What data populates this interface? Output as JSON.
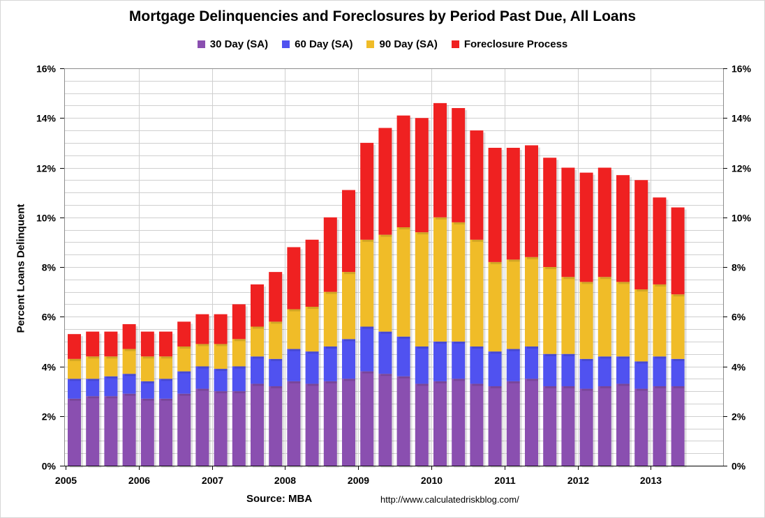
{
  "chart_data": {
    "type": "bar",
    "stacked": true,
    "title": "Mortgage Delinquencies and Foreclosures by Period Past Due, All Loans",
    "ylabel": "Percent Loans Delinquent",
    "xlabel": "",
    "ylim": [
      0,
      16
    ],
    "y_ticks": [
      "0%",
      "2%",
      "4%",
      "6%",
      "8%",
      "10%",
      "12%",
      "14%",
      "16%"
    ],
    "x_ticks": [
      "2005",
      "2006",
      "2007",
      "2008",
      "2009",
      "2010",
      "2011",
      "2012",
      "2013"
    ],
    "grid": true,
    "legend_position": "top",
    "categories": [
      "2005 Q1",
      "2005 Q2",
      "2005 Q3",
      "2005 Q4",
      "2006 Q1",
      "2006 Q2",
      "2006 Q3",
      "2006 Q4",
      "2007 Q1",
      "2007 Q2",
      "2007 Q3",
      "2007 Q4",
      "2008 Q1",
      "2008 Q2",
      "2008 Q3",
      "2008 Q4",
      "2009 Q1",
      "2009 Q2",
      "2009 Q3",
      "2009 Q4",
      "2010 Q1",
      "2010 Q2",
      "2010 Q3",
      "2010 Q4",
      "2011 Q1",
      "2011 Q2",
      "2011 Q3",
      "2011 Q4",
      "2012 Q1",
      "2012 Q2",
      "2012 Q3",
      "2012 Q4",
      "2013 Q1",
      "2013 Q2"
    ],
    "series": [
      {
        "name": "30 Day (SA)",
        "color": "#8a4fb0",
        "values": [
          2.7,
          2.8,
          2.8,
          2.9,
          2.7,
          2.7,
          2.9,
          3.1,
          3.0,
          3.0,
          3.3,
          3.2,
          3.4,
          3.3,
          3.4,
          3.5,
          3.8,
          3.7,
          3.6,
          3.3,
          3.4,
          3.5,
          3.3,
          3.2,
          3.4,
          3.5,
          3.2,
          3.2,
          3.1,
          3.2,
          3.3,
          3.1,
          3.2,
          3.2
        ]
      },
      {
        "name": "60 Day (SA)",
        "color": "#5052f0",
        "values": [
          0.8,
          0.7,
          0.8,
          0.8,
          0.7,
          0.8,
          0.9,
          0.9,
          0.9,
          1.0,
          1.1,
          1.1,
          1.3,
          1.3,
          1.4,
          1.6,
          1.8,
          1.7,
          1.6,
          1.5,
          1.6,
          1.5,
          1.5,
          1.4,
          1.3,
          1.3,
          1.3,
          1.3,
          1.2,
          1.2,
          1.1,
          1.1,
          1.2,
          1.1
        ]
      },
      {
        "name": "90 Day (SA)",
        "color": "#f0bc28",
        "values": [
          0.8,
          0.9,
          0.8,
          1.0,
          1.0,
          0.9,
          1.0,
          0.9,
          1.0,
          1.1,
          1.2,
          1.5,
          1.6,
          1.8,
          2.2,
          2.7,
          3.5,
          3.9,
          4.4,
          4.6,
          5.0,
          4.8,
          4.3,
          3.6,
          3.6,
          3.6,
          3.5,
          3.1,
          3.1,
          3.2,
          3.0,
          2.9,
          2.9,
          2.6
        ]
      },
      {
        "name": "Foreclosure Process",
        "color": "#ef2121",
        "values": [
          1.0,
          1.0,
          1.0,
          1.0,
          1.0,
          1.0,
          1.0,
          1.2,
          1.2,
          1.4,
          1.7,
          2.0,
          2.5,
          2.7,
          3.0,
          3.3,
          3.9,
          4.3,
          4.5,
          4.6,
          4.6,
          4.6,
          4.4,
          4.6,
          4.5,
          4.5,
          4.4,
          4.4,
          4.4,
          4.4,
          4.3,
          4.4,
          3.5,
          3.5
        ]
      }
    ]
  },
  "footer": {
    "source": "Source: MBA",
    "url": "http://www.calculatedriskblog.com/"
  }
}
